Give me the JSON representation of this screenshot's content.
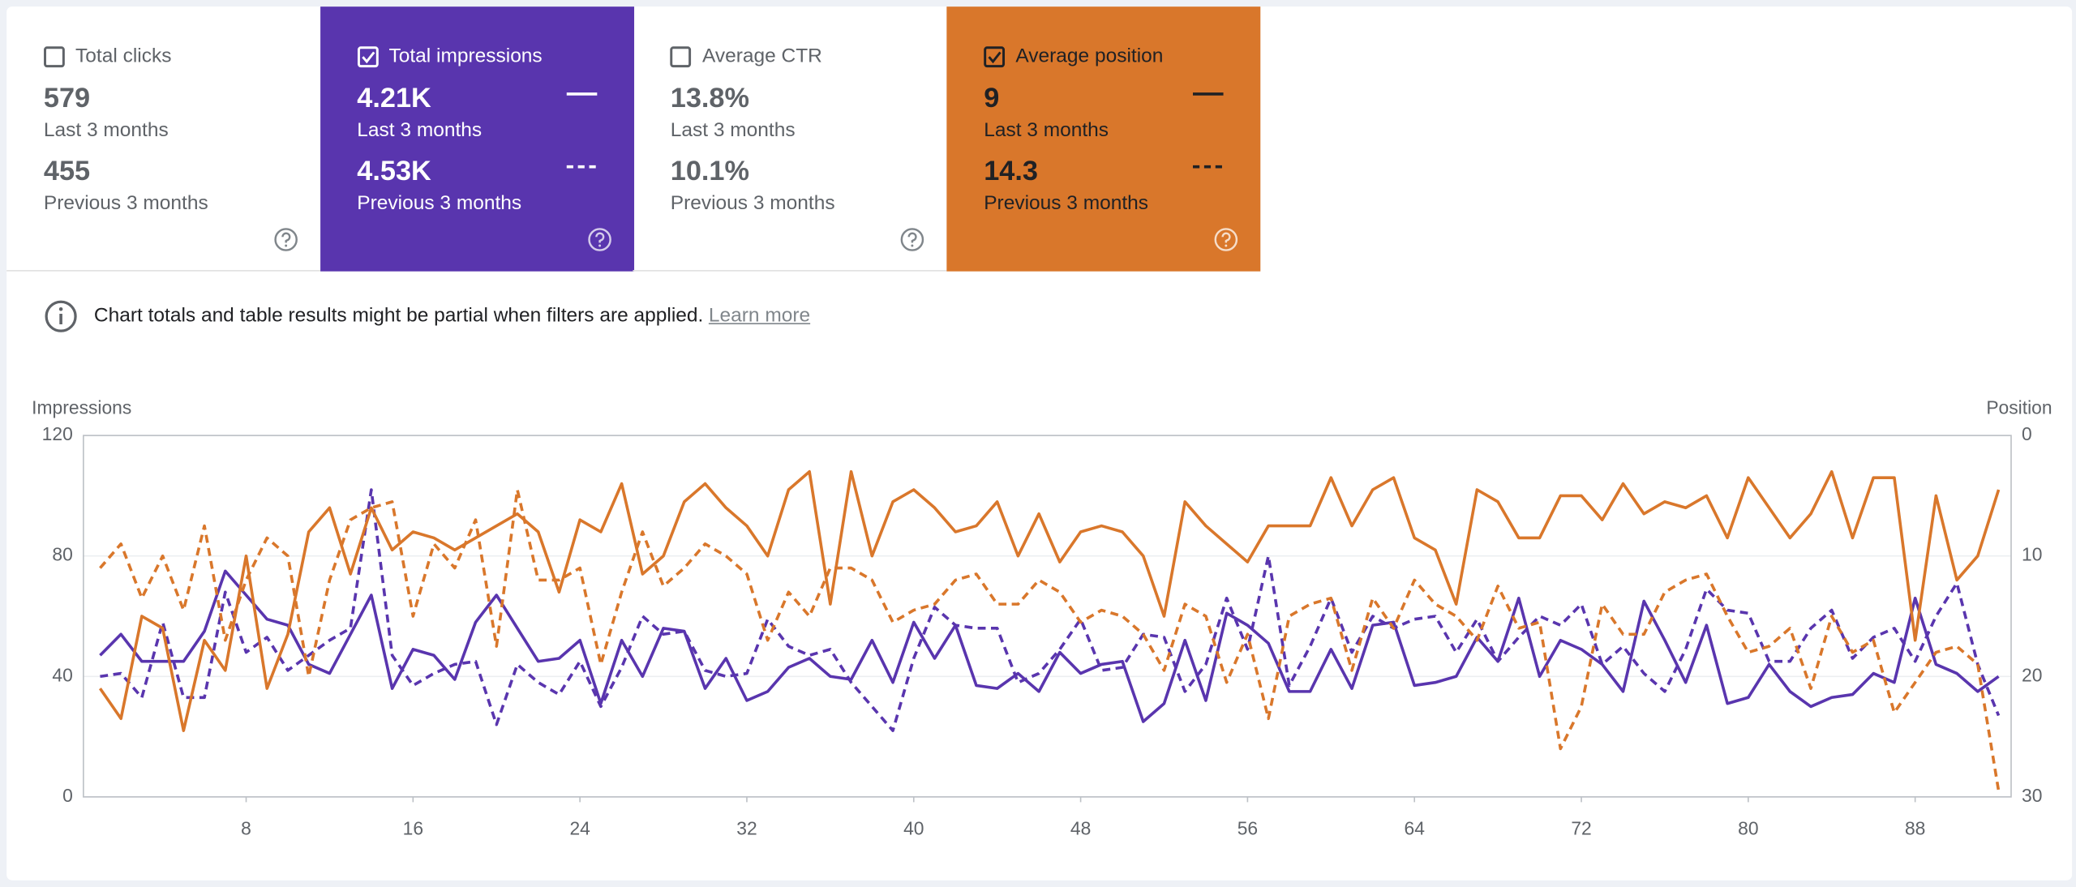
{
  "cards": [
    {
      "label": "Total clicks",
      "checked": false,
      "value": "579",
      "period": "Last 3 months",
      "prev_value": "455",
      "prev_period": "Previous 3 months"
    },
    {
      "label": "Total impressions",
      "checked": true,
      "color": "#5935ae",
      "value": "4.21K",
      "period": "Last 3 months",
      "prev_value": "4.53K",
      "prev_period": "Previous 3 months"
    },
    {
      "label": "Average CTR",
      "checked": false,
      "value": "13.8%",
      "period": "Last 3 months",
      "prev_value": "10.1%",
      "prev_period": "Previous 3 months"
    },
    {
      "label": "Average position",
      "checked": true,
      "color": "#d9772b",
      "value": "9",
      "period": "Last 3 months",
      "prev_value": "14.3",
      "prev_period": "Previous 3 months"
    }
  ],
  "notice": {
    "text": "Chart totals and table results might be partial when filters are applied.",
    "link": "Learn more"
  },
  "chart_data": {
    "type": "line",
    "y_label": "Impressions",
    "y2_label": "Position",
    "x": [
      1,
      2,
      3,
      4,
      5,
      6,
      7,
      8,
      9,
      10,
      11,
      12,
      13,
      14,
      15,
      16,
      17,
      18,
      19,
      20,
      21,
      22,
      23,
      24,
      25,
      26,
      27,
      28,
      29,
      30,
      31,
      32,
      33,
      34,
      35,
      36,
      37,
      38,
      39,
      40,
      41,
      42,
      43,
      44,
      45,
      46,
      47,
      48,
      49,
      50,
      51,
      52,
      53,
      54,
      55,
      56,
      57,
      58,
      59,
      60,
      61,
      62,
      63,
      64,
      65,
      66,
      67,
      68,
      69,
      70,
      71,
      72,
      73,
      74,
      75,
      76,
      77,
      78,
      79,
      80,
      81,
      82,
      83,
      84,
      85,
      86,
      87,
      88,
      89,
      90,
      91,
      92
    ],
    "xlim": [
      0.2,
      92.6
    ],
    "xticks": [
      8,
      16,
      24,
      32,
      40,
      48,
      56,
      64,
      72,
      80,
      88
    ],
    "ylim": [
      0,
      120
    ],
    "yticks": [
      0,
      40,
      80,
      120
    ],
    "y2lim": [
      30,
      0
    ],
    "y2ticks": [
      0,
      10,
      20,
      30
    ],
    "grid": true,
    "series": [
      {
        "color": "#5935ae",
        "dashed": false,
        "values": [
          47,
          54,
          45,
          45,
          45,
          55,
          75,
          67,
          59,
          57,
          44,
          41,
          54,
          67,
          36,
          49,
          47,
          39,
          58,
          67,
          56,
          45,
          46,
          52,
          31,
          52,
          40,
          56,
          55,
          36,
          46,
          32,
          35,
          43,
          46,
          40,
          39,
          52,
          38,
          58,
          46,
          57,
          37,
          36,
          41,
          35,
          48,
          41,
          44,
          45,
          25,
          31,
          52,
          32,
          61,
          57,
          51,
          35,
          35,
          49,
          36,
          57,
          58,
          37,
          38,
          40,
          53,
          45,
          66,
          40,
          52,
          49,
          44,
          35,
          65,
          52,
          38,
          57,
          31,
          33,
          44,
          35,
          30,
          33,
          34,
          41,
          38,
          66,
          44,
          41,
          35,
          40
        ]
      },
      {
        "color": "#5935ae",
        "dashed": true,
        "values": [
          40,
          41,
          33,
          58,
          33,
          33,
          68,
          48,
          53,
          42,
          47,
          52,
          56,
          102,
          47,
          37,
          41,
          44,
          45,
          24,
          44,
          38,
          34,
          45,
          30,
          43,
          60,
          54,
          55,
          42,
          40,
          41,
          59,
          50,
          47,
          49,
          38,
          30,
          22,
          46,
          63,
          57,
          56,
          56,
          38,
          41,
          49,
          59,
          42,
          43,
          54,
          53,
          35,
          44,
          66,
          49,
          80,
          37,
          50,
          66,
          48,
          60,
          56,
          59,
          60,
          48,
          59,
          45,
          53,
          60,
          57,
          64,
          44,
          50,
          41,
          35,
          49,
          69,
          62,
          61,
          45,
          45,
          56,
          62,
          46,
          53,
          56,
          45,
          60,
          71,
          44,
          27
        ]
      },
      {
        "color": "#d9772b",
        "dashed": false,
        "axis": "y2",
        "values": [
          21,
          23.5,
          15,
          16,
          24.5,
          17,
          19.5,
          10,
          21,
          16.5,
          8,
          6,
          11.5,
          6,
          9.5,
          8,
          8.5,
          9.5,
          8.5,
          7.5,
          6.5,
          8,
          13,
          7,
          8,
          4,
          11.5,
          10,
          5.5,
          4,
          6,
          7.5,
          10,
          4.5,
          3,
          14,
          3,
          10,
          5.5,
          4.5,
          6,
          8,
          7.5,
          5.5,
          10,
          6.5,
          10.5,
          8,
          7.5,
          8,
          10,
          15,
          5.5,
          7.5,
          9,
          10.5,
          7.5,
          7.5,
          7.5,
          3.5,
          7.5,
          4.5,
          3.5,
          8.5,
          9.5,
          14,
          4.5,
          5.5,
          8.5,
          8.5,
          5,
          5,
          7,
          4,
          6.5,
          5.5,
          6,
          5,
          8.5,
          3.5,
          6,
          8.5,
          6.5,
          3,
          8.5,
          3.5,
          3.5,
          17,
          5,
          12,
          10,
          4.5
        ]
      },
      {
        "color": "#d9772b",
        "dashed": true,
        "axis": "y2",
        "values": [
          11,
          9,
          13.5,
          10,
          14.5,
          7.5,
          17,
          12,
          8.5,
          10,
          20,
          12,
          7,
          6,
          5.5,
          15,
          9,
          11,
          7,
          17.5,
          4.5,
          12,
          12,
          11,
          19,
          13,
          8,
          12.5,
          11,
          9,
          10,
          11.5,
          17,
          13,
          15,
          11,
          11,
          12,
          15.5,
          14.5,
          14,
          12,
          11.5,
          14,
          14,
          12,
          13,
          15.5,
          14.5,
          15,
          16.5,
          19.5,
          14,
          15,
          20.5,
          16.5,
          23.5,
          15,
          14,
          13.5,
          19.5,
          13.5,
          16,
          12,
          14,
          15,
          17,
          12.5,
          16,
          15.5,
          26,
          22.5,
          14,
          16.5,
          16.5,
          13,
          12,
          11.5,
          15,
          18,
          17.5,
          16,
          21,
          15,
          18,
          17,
          23,
          20.5,
          18,
          17.5,
          19,
          29.5
        ]
      }
    ]
  }
}
